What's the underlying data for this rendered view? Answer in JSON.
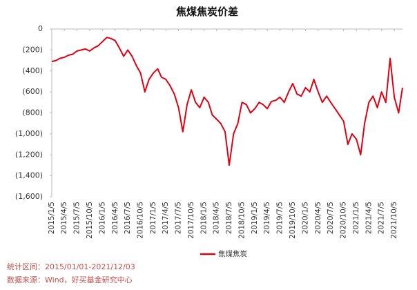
{
  "chart_data": {
    "type": "line",
    "title": "焦煤焦炭价差",
    "x": [
      "2015/1/5",
      "2015/2/5",
      "2015/3/5",
      "2015/4/5",
      "2015/5/5",
      "2015/6/5",
      "2015/7/5",
      "2015/8/5",
      "2015/9/5",
      "2015/10/5",
      "2015/11/5",
      "2015/12/5",
      "2016/1/5",
      "2016/2/5",
      "2016/3/5",
      "2016/4/5",
      "2016/5/5",
      "2016/6/5",
      "2016/7/5",
      "2016/8/5",
      "2016/9/5",
      "2016/10/5",
      "2016/11/5",
      "2016/12/5",
      "2017/1/5",
      "2017/2/5",
      "2017/3/5",
      "2017/4/5",
      "2017/5/5",
      "2017/6/5",
      "2017/7/5",
      "2017/8/5",
      "2017/9/5",
      "2017/10/5",
      "2017/11/5",
      "2017/12/5",
      "2018/1/5",
      "2018/2/5",
      "2018/3/5",
      "2018/4/5",
      "2018/5/5",
      "2018/6/5",
      "2018/7/5",
      "2018/8/5",
      "2018/9/5",
      "2018/10/5",
      "2018/11/5",
      "2018/12/5",
      "2019/1/5",
      "2019/2/5",
      "2019/3/5",
      "2019/4/5",
      "2019/5/5",
      "2019/6/5",
      "2019/7/5",
      "2019/8/5",
      "2019/9/5",
      "2019/10/5",
      "2019/11/5",
      "2019/12/5",
      "2020/1/5",
      "2020/2/5",
      "2020/3/5",
      "2020/4/5",
      "2020/5/5",
      "2020/6/5",
      "2020/7/5",
      "2020/8/5",
      "2020/9/5",
      "2020/10/5",
      "2020/11/5",
      "2020/12/5",
      "2021/1/5",
      "2021/2/5",
      "2021/3/5",
      "2021/4/5",
      "2021/5/5",
      "2021/6/5",
      "2021/7/5",
      "2021/8/5",
      "2021/9/5",
      "2021/10/5",
      "2021/11/5",
      "2021/12/3"
    ],
    "series": [
      {
        "name": "焦煤焦炭",
        "color": "#e00012",
        "values": [
          -310,
          -300,
          -280,
          -270,
          -250,
          -240,
          -210,
          -200,
          -190,
          -210,
          -180,
          -160,
          -120,
          -80,
          -90,
          -110,
          -180,
          -260,
          -200,
          -260,
          -350,
          -420,
          -600,
          -480,
          -420,
          -380,
          -460,
          -480,
          -540,
          -620,
          -750,
          -980,
          -720,
          -580,
          -700,
          -750,
          -650,
          -700,
          -820,
          -860,
          -900,
          -980,
          -1300,
          -1000,
          -900,
          -700,
          -720,
          -800,
          -760,
          -700,
          -720,
          -760,
          -690,
          -680,
          -650,
          -700,
          -600,
          -520,
          -620,
          -640,
          -560,
          -600,
          -480,
          -600,
          -700,
          -640,
          -700,
          -760,
          -820,
          -880,
          -1100,
          -1000,
          -1050,
          -1200,
          -900,
          -700,
          -640,
          -750,
          -600,
          -700,
          -280,
          -650,
          -800,
          -560
        ]
      }
    ],
    "xticks": [
      "2015/1/5",
      "2015/4/5",
      "2015/7/5",
      "2015/10/5",
      "2016/1/5",
      "2016/4/5",
      "2016/7/5",
      "2016/10/5",
      "2017/1/5",
      "2017/4/5",
      "2017/7/5",
      "2017/10/5",
      "2018/1/5",
      "2018/4/5",
      "2018/7/5",
      "2018/10/5",
      "2019/1/5",
      "2019/4/5",
      "2019/7/5",
      "2019/10/5",
      "2020/1/5",
      "2020/4/5",
      "2020/7/5",
      "2020/10/5",
      "2021/1/5",
      "2021/4/5",
      "2021/7/5",
      "2021/10/5"
    ],
    "ylim": [
      -1600,
      0
    ],
    "yticks": [
      0,
      {
        "value": -200,
        "label": "(200)"
      },
      {
        "value": -400,
        "label": "(400)"
      },
      {
        "value": -600,
        "label": "(600)"
      },
      {
        "value": -800,
        "label": "(800)"
      },
      {
        "value": -1000,
        "label": "(1,000)"
      },
      {
        "value": -1200,
        "label": "(1,200)"
      },
      {
        "value": -1400,
        "label": "(1,400)"
      },
      {
        "value": -1600,
        "label": "(1,600)"
      }
    ],
    "notes": [
      "统计区间：2015/01/01-2021/12/03",
      "数据来源：Wind，好买基金研究中心"
    ]
  }
}
